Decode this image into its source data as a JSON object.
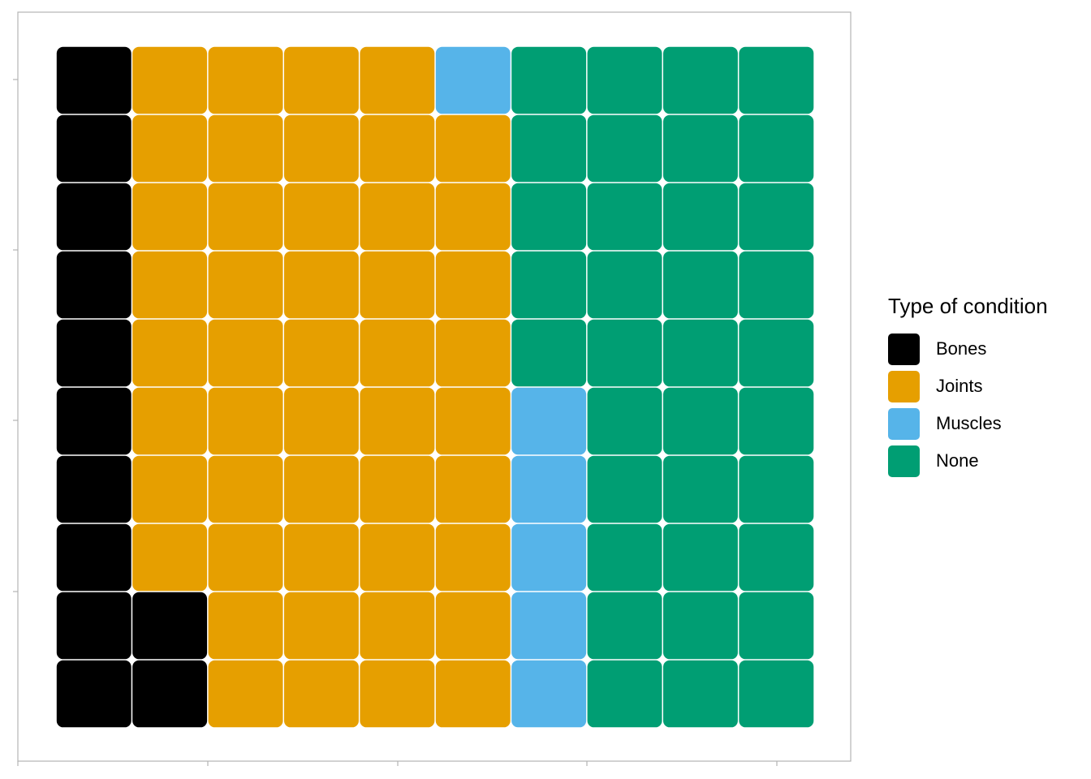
{
  "chart_data": {
    "type": "waffle",
    "title": "",
    "xlabel": "",
    "ylabel": "",
    "columns": 10,
    "rows": 10,
    "legend": {
      "title": "Type of condition",
      "position": "right",
      "entries": [
        {
          "name": "Bones",
          "color": "#000000"
        },
        {
          "name": "Joints",
          "color": "#E69F00"
        },
        {
          "name": "Muscles",
          "color": "#56B4E9"
        },
        {
          "name": "None",
          "color": "#009E73"
        }
      ]
    },
    "grid_rows_top_to_bottom": [
      [
        "Bones",
        "Joints",
        "Joints",
        "Joints",
        "Joints",
        "Muscles",
        "None",
        "None",
        "None",
        "None"
      ],
      [
        "Bones",
        "Joints",
        "Joints",
        "Joints",
        "Joints",
        "Joints",
        "None",
        "None",
        "None",
        "None"
      ],
      [
        "Bones",
        "Joints",
        "Joints",
        "Joints",
        "Joints",
        "Joints",
        "None",
        "None",
        "None",
        "None"
      ],
      [
        "Bones",
        "Joints",
        "Joints",
        "Joints",
        "Joints",
        "Joints",
        "None",
        "None",
        "None",
        "None"
      ],
      [
        "Bones",
        "Joints",
        "Joints",
        "Joints",
        "Joints",
        "Joints",
        "None",
        "None",
        "None",
        "None"
      ],
      [
        "Bones",
        "Joints",
        "Joints",
        "Joints",
        "Joints",
        "Joints",
        "Muscles",
        "None",
        "None",
        "None"
      ],
      [
        "Bones",
        "Joints",
        "Joints",
        "Joints",
        "Joints",
        "Joints",
        "Muscles",
        "None",
        "None",
        "None"
      ],
      [
        "Bones",
        "Joints",
        "Joints",
        "Joints",
        "Joints",
        "Joints",
        "Muscles",
        "None",
        "None",
        "None"
      ],
      [
        "Bones",
        "Bones",
        "Joints",
        "Joints",
        "Joints",
        "Joints",
        "Muscles",
        "None",
        "None",
        "None"
      ],
      [
        "Bones",
        "Bones",
        "Joints",
        "Joints",
        "Joints",
        "Joints",
        "Muscles",
        "None",
        "None",
        "None"
      ]
    ],
    "counts": {
      "Bones": 12,
      "Joints": 47,
      "Muscles": 6,
      "None": 35
    }
  }
}
